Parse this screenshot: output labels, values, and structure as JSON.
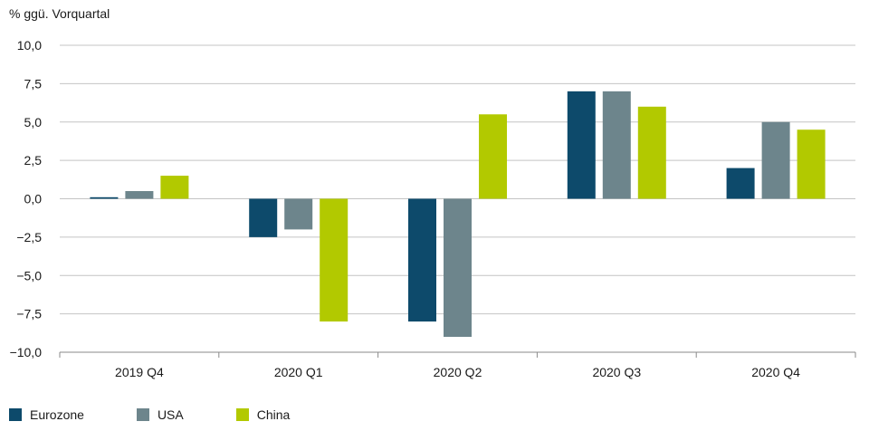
{
  "chart_data": {
    "type": "bar",
    "title": "",
    "ylabel": "% ggü. Vorquartal",
    "xlabel": "",
    "categories": [
      "2019 Q4",
      "2020 Q1",
      "2020 Q2",
      "2020 Q3",
      "2020 Q4"
    ],
    "series": [
      {
        "name": "Eurozone",
        "color": "#0d4a6b",
        "values": [
          0.1,
          -2.5,
          -8.0,
          7.0,
          2.0
        ]
      },
      {
        "name": "USA",
        "color": "#6d858c",
        "values": [
          0.5,
          -2.0,
          -9.0,
          7.0,
          5.0
        ]
      },
      {
        "name": "China",
        "color": "#b2c900",
        "values": [
          1.5,
          -8.0,
          5.5,
          6.0,
          4.5
        ]
      }
    ],
    "ylim": [
      -10,
      10
    ],
    "yticks": [
      10,
      7.5,
      5,
      2.5,
      0,
      -2.5,
      -5,
      -7.5,
      -10
    ],
    "ytick_labels": [
      "10,0",
      "7,5",
      "5,0",
      "2,5",
      "0,0",
      "−2,5",
      "−5,0",
      "−7,5",
      "−10,0"
    ],
    "grid": true,
    "legend_position": "bottom-left"
  }
}
